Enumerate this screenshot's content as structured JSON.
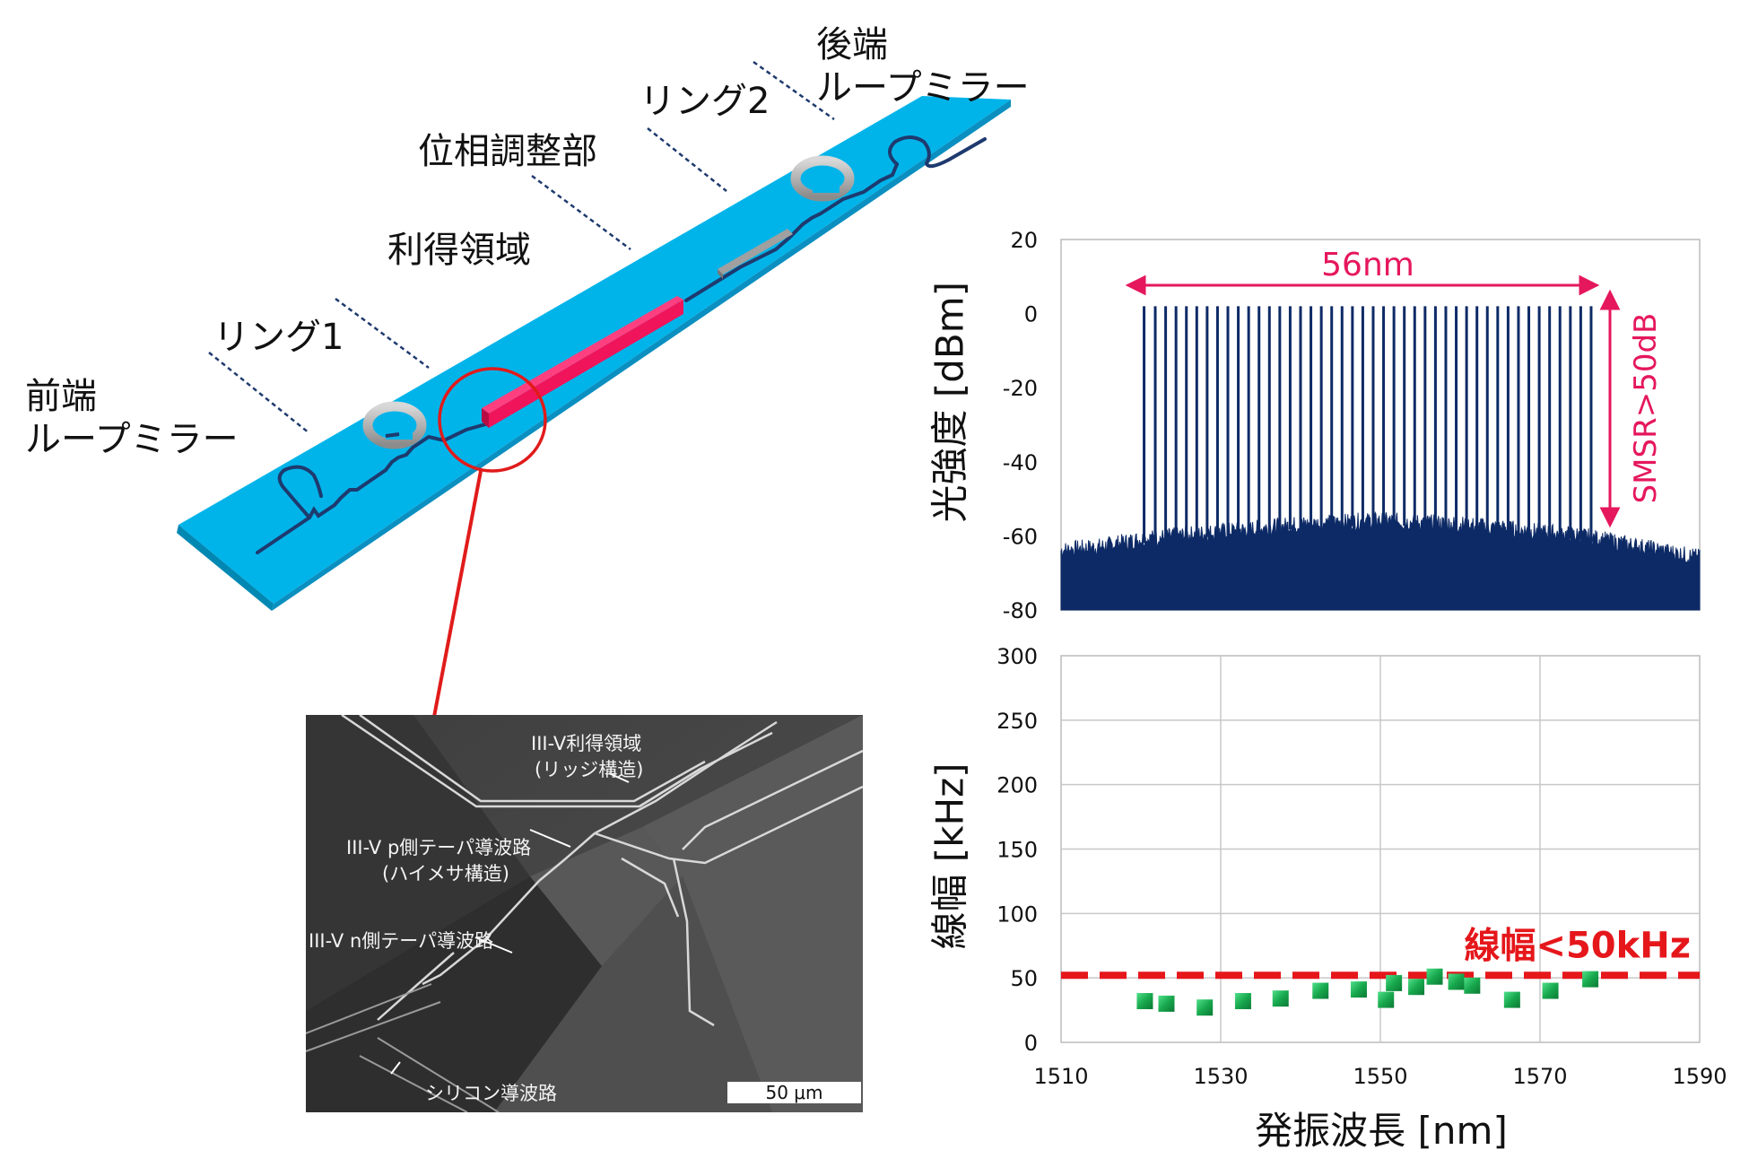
{
  "device": {
    "labels": {
      "rear_mirror_1": "後端",
      "rear_mirror_2": "ループミラー",
      "ring2": "リング2",
      "phase": "位相調整部",
      "gain": "利得領域",
      "ring1": "リング1",
      "front_mirror_1": "前端",
      "front_mirror_2": "ループミラー"
    },
    "colors": {
      "substrate": "#00b4ea",
      "gain": "#f0145a",
      "waveguide": "#1e3a6e",
      "ring": "#a8a8a8",
      "callout": "#e11b1b"
    }
  },
  "sem": {
    "labels": {
      "gain_1": "III-V利得領域",
      "gain_2": "(リッジ構造)",
      "ptaper_1": "III-V p側テーパ導波路",
      "ptaper_2": "(ハイメサ構造)",
      "ntaper": "III-V n側テーパ導波路",
      "silicon": "シリコン導波路"
    },
    "scale": "50 μm"
  },
  "chart_data": [
    {
      "type": "line",
      "ylabel": "光強度 [dBm]",
      "ylim": [
        -80,
        20
      ],
      "yticks": [
        "20",
        "0",
        "-20",
        "-40",
        "-60",
        "-80"
      ],
      "xlim": [
        1510,
        1590
      ],
      "grid": false,
      "annotations": {
        "span": "56nm",
        "smsr": "SMSR>50dB"
      },
      "series": [
        {
          "peaks_x": [
            1520.4,
            1521.8,
            1523.1,
            1524.4,
            1525.7,
            1527.0,
            1528.3,
            1529.6,
            1530.9,
            1532.2,
            1533.5,
            1534.8,
            1536.1,
            1537.4,
            1538.7,
            1540.0,
            1541.3,
            1542.6,
            1543.9,
            1545.2,
            1546.5,
            1547.8,
            1549.1,
            1550.4,
            1551.7,
            1553.0,
            1554.3,
            1555.6,
            1556.9,
            1558.2,
            1559.5,
            1560.8,
            1562.1,
            1563.4,
            1564.7,
            1566.0,
            1567.3,
            1568.6,
            1569.9,
            1571.2,
            1572.5,
            1573.8,
            1575.1,
            1576.4
          ],
          "peak_level": 2,
          "noise_floor_x": [
            1510,
            1515,
            1520,
            1525,
            1530,
            1535,
            1540,
            1545,
            1550,
            1555,
            1560,
            1565,
            1570,
            1575,
            1580,
            1585,
            1590
          ],
          "noise_floor_y": [
            -65,
            -64,
            -62,
            -61,
            -60,
            -59,
            -58,
            -57.5,
            -57,
            -57.5,
            -58,
            -59,
            -60,
            -61,
            -63,
            -65,
            -67
          ]
        }
      ]
    },
    {
      "type": "scatter",
      "xlabel": "発振波長 [nm]",
      "ylabel": "線幅 [kHz]",
      "xlim": [
        1510,
        1590
      ],
      "ylim": [
        0,
        300
      ],
      "xticks": [
        "1510",
        "1530",
        "1550",
        "1570",
        "1590"
      ],
      "yticks": [
        "300",
        "250",
        "200",
        "150",
        "100",
        "50",
        "0"
      ],
      "grid": true,
      "threshold": {
        "value": 52,
        "label": "線幅<50kHz"
      },
      "series": [
        {
          "x": [
            1520.5,
            1523.2,
            1528.0,
            1532.8,
            1537.5,
            1542.5,
            1547.3,
            1550.7,
            1551.7,
            1554.5,
            1556.8,
            1559.5,
            1561.5,
            1566.5,
            1571.3,
            1576.3
          ],
          "y": [
            32,
            30,
            27,
            32,
            34,
            40,
            41,
            33,
            46,
            43,
            51,
            47,
            44,
            33,
            40,
            49
          ]
        }
      ]
    }
  ]
}
